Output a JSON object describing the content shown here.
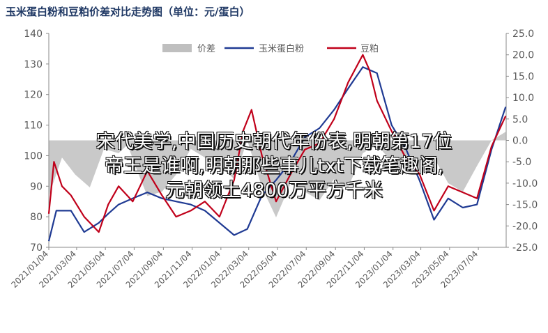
{
  "title": "玉米蛋白粉和豆粕价差对比走势图（单位：元/蛋白）",
  "overlay": {
    "line1": "宋代美学,中国历史朝代年份表,明朝第17位",
    "line2": "帝王是谁啊,明朝那些事儿txt下载笔趣阁,",
    "line3": "元朝领土4800万平方千米"
  },
  "colors": {
    "corn": "#1f3a93",
    "soy": "#c0001a",
    "spread": "#bfbfbf",
    "axis": "#8a8a8a",
    "tick_text": "#595959"
  },
  "chart_data": {
    "type": "line",
    "title": "玉米蛋白粉和豆粕价差对比走势图（单位：元/蛋白）",
    "x_tick_labels": [
      "2021/01/04",
      "2021/03/04",
      "2021/05/04",
      "2021/07/04",
      "2021/09/04",
      "2021/11/04",
      "2022/01/04",
      "2022/03/04",
      "2022/05/04",
      "2022/07/04",
      "2022/09/04",
      "2022/11/04",
      "2023/01/04",
      "2023/03/04",
      "2023/05/04",
      "2023/07/04"
    ],
    "x_range": [
      "2021/01/04",
      "2023/09/01"
    ],
    "y_left": {
      "min": 70,
      "max": 140,
      "ticks": [
        "70",
        "80",
        "90",
        "100",
        "110",
        "120",
        "130",
        "140"
      ]
    },
    "y_right": {
      "min": -25,
      "max": 25,
      "ticks": [
        "-25.0",
        "-20.0",
        "-15.0",
        "-10.0",
        "-5.0",
        "0.0",
        "5.0",
        "10.0",
        "15.0",
        "20.0",
        "25.0"
      ]
    },
    "legend": {
      "position": "top-center",
      "labels": [
        "价差",
        "玉米蛋白粉",
        "豆粕"
      ]
    },
    "series": [
      {
        "name": "价差",
        "kind": "area",
        "axis": "right",
        "x": [
          "2021/01/04",
          "2021/02/01",
          "2021/03/01",
          "2021/04/01",
          "2021/05/01",
          "2021/06/01",
          "2021/06/20",
          "2021/07/10",
          "2021/08/01",
          "2021/09/01",
          "2021/10/01",
          "2021/11/01",
          "2021/12/01",
          "2022/01/01",
          "2022/02/01",
          "2022/03/01",
          "2022/04/01",
          "2022/05/01",
          "2022/06/01",
          "2022/07/01",
          "2022/08/01",
          "2022/09/01",
          "2022/10/01",
          "2022/11/01",
          "2022/12/01",
          "2023/01/01",
          "2023/02/01",
          "2023/03/01",
          "2023/04/01",
          "2023/05/01",
          "2023/06/01",
          "2023/07/01",
          "2023/08/01",
          "2023/08/31"
        ],
        "values": [
          -13,
          -4,
          -8,
          -11,
          -2,
          -3,
          -1,
          -7,
          -13,
          -12,
          -8,
          -2,
          -4,
          -6,
          -9,
          0,
          -11,
          -18,
          -10,
          -12,
          -14,
          -9,
          -11,
          -3,
          -1,
          -5,
          -8,
          -7,
          -4,
          -10,
          -12,
          -6,
          0,
          2
        ]
      },
      {
        "name": "玉米蛋白粉",
        "kind": "line",
        "axis": "left",
        "x": [
          "2021/01/04",
          "2021/01/20",
          "2021/02/20",
          "2021/03/20",
          "2021/04/20",
          "2021/05/10",
          "2021/06/01",
          "2021/07/01",
          "2021/08/01",
          "2021/09/01",
          "2021/10/01",
          "2021/11/01",
          "2021/12/01",
          "2022/01/01",
          "2022/02/01",
          "2022/03/01",
          "2022/04/01",
          "2022/05/01",
          "2022/06/01",
          "2022/07/01",
          "2022/08/01",
          "2022/09/01",
          "2022/10/01",
          "2022/11/01",
          "2022/12/01",
          "2023/01/01",
          "2023/02/01",
          "2023/03/01",
          "2023/04/01",
          "2023/05/01",
          "2023/06/01",
          "2023/07/01",
          "2023/08/01",
          "2023/08/31"
        ],
        "values": [
          72,
          82,
          82,
          75,
          78,
          81,
          84,
          86,
          88,
          86,
          85,
          84,
          82,
          78,
          74,
          76,
          87,
          92,
          98,
          106,
          109,
          115,
          122,
          129,
          127,
          110,
          102,
          92,
          79,
          86,
          83,
          84,
          102,
          116
        ]
      },
      {
        "name": "豆粕",
        "kind": "line",
        "axis": "left",
        "x": [
          "2021/01/04",
          "2021/01/15",
          "2021/02/01",
          "2021/02/20",
          "2021/03/20",
          "2021/04/20",
          "2021/05/10",
          "2021/06/01",
          "2021/07/01",
          "2021/08/01",
          "2021/09/01",
          "2021/10/01",
          "2021/11/01",
          "2021/12/01",
          "2022/01/01",
          "2022/02/01",
          "2022/02/20",
          "2022/03/10",
          "2022/04/01",
          "2022/05/01",
          "2022/06/01",
          "2022/07/01",
          "2022/08/01",
          "2022/09/01",
          "2022/10/01",
          "2022/11/01",
          "2022/11/15",
          "2022/12/01",
          "2023/01/01",
          "2023/02/01",
          "2023/03/01",
          "2023/04/01",
          "2023/05/01",
          "2023/06/01",
          "2023/07/01",
          "2023/08/01",
          "2023/08/31"
        ],
        "values": [
          81,
          98,
          90,
          87,
          80,
          75,
          84,
          90,
          85,
          95,
          87,
          80,
          82,
          85,
          80,
          92,
          108,
          115,
          100,
          85,
          94,
          102,
          104,
          112,
          124,
          133,
          128,
          118,
          108,
          99,
          94,
          82,
          90,
          88,
          86,
          103,
          113
        ]
      }
    ]
  }
}
